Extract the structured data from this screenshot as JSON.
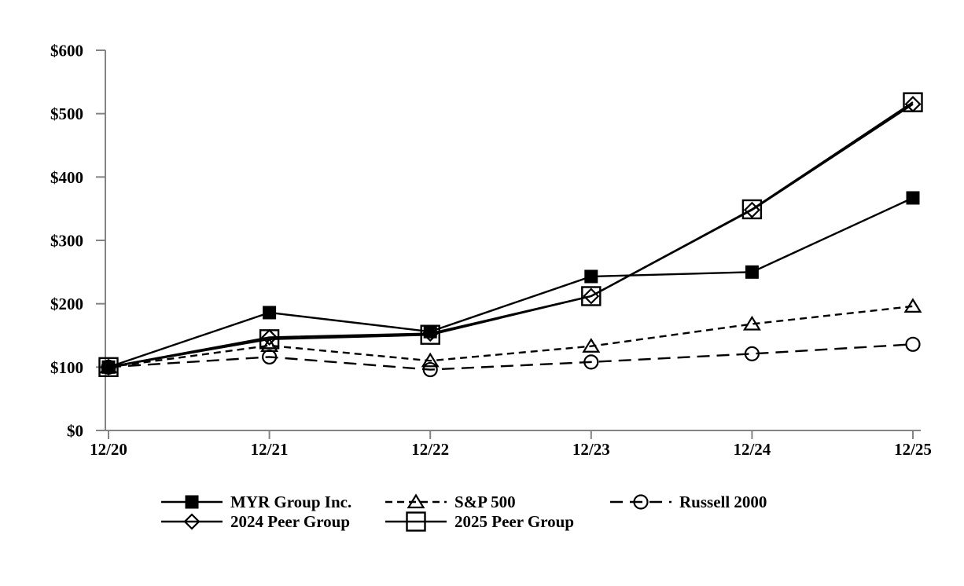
{
  "page": {
    "background": "#ffffff"
  },
  "chart_data": {
    "type": "line",
    "title": "",
    "xlabel": "",
    "ylabel": "",
    "x_tick_labels": [
      "12/20",
      "12/21",
      "12/22",
      "12/23",
      "12/24",
      "12/25"
    ],
    "y_tick_labels": [
      "$0",
      "$100",
      "$200",
      "$300",
      "$400",
      "$500",
      "$600"
    ],
    "ylim": [
      0,
      600
    ],
    "y_tick_step": 100,
    "grid": false,
    "axis_color": "#848484",
    "line_color": "#000000",
    "series": [
      {
        "name": "MYR Group Inc.",
        "marker": "filled-square",
        "line_style": "solid",
        "values": [
          100,
          186,
          156,
          243,
          250,
          367
        ]
      },
      {
        "name": "S&P 500",
        "marker": "open-triangle",
        "line_style": "dashed",
        "values": [
          100,
          134,
          110,
          133,
          168,
          196
        ]
      },
      {
        "name": "Russell 2000",
        "marker": "open-circle",
        "line_style": "long-dash",
        "values": [
          100,
          116,
          96,
          108,
          121,
          136
        ]
      },
      {
        "name": "2024 Peer Group",
        "marker": "open-diamond",
        "line_style": "solid",
        "values": [
          100,
          147,
          153,
          212,
          348,
          515
        ]
      },
      {
        "name": "2025 Peer Group",
        "marker": "open-square",
        "line_style": "solid",
        "values": [
          100,
          144,
          151,
          212,
          349,
          518
        ]
      }
    ],
    "draw_order": [
      2,
      1,
      3,
      4,
      0
    ],
    "legend": {
      "position": "bottom",
      "rows": [
        [
          0,
          1,
          2
        ],
        [
          3,
          4
        ]
      ]
    }
  }
}
